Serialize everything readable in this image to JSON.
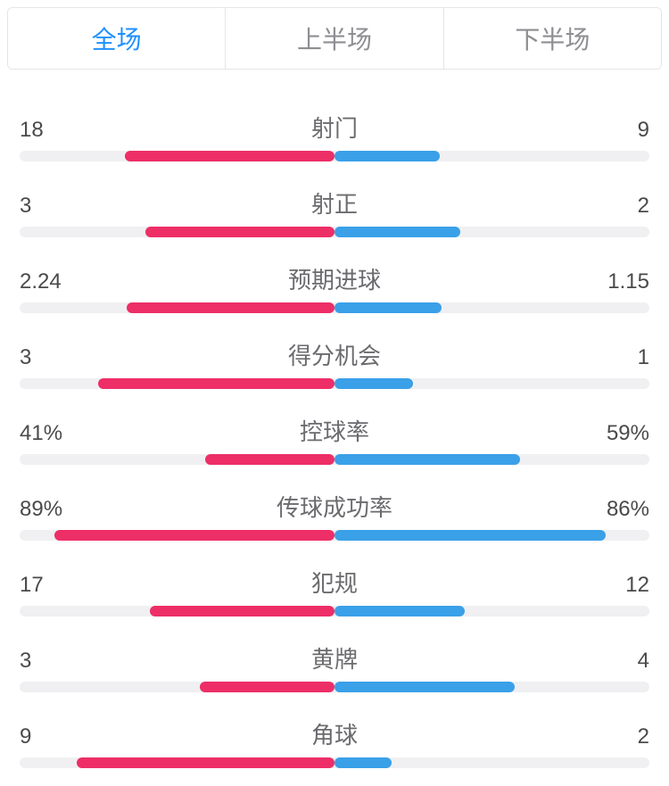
{
  "colors": {
    "left": "#ed2e67",
    "right": "#3aa0e8",
    "track": "#f0f0f2",
    "label": "#6b6b6f",
    "value": "#4a4a4a",
    "tab_active": "#1e90ff",
    "tab_inactive": "#8e8e93",
    "border": "#e5e5e7"
  },
  "tabs": {
    "items": [
      {
        "label": "全场",
        "active": true
      },
      {
        "label": "上半场",
        "active": false
      },
      {
        "label": "下半场",
        "active": false
      }
    ]
  },
  "stats": [
    {
      "label": "射门",
      "left_text": "18",
      "right_text": "9",
      "left_pct": 66.7,
      "right_pct": 33.3
    },
    {
      "label": "射正",
      "left_text": "3",
      "right_text": "2",
      "left_pct": 60.0,
      "right_pct": 40.0
    },
    {
      "label": "预期进球",
      "left_text": "2.24",
      "right_text": "1.15",
      "left_pct": 66.1,
      "right_pct": 33.9
    },
    {
      "label": "得分机会",
      "left_text": "3",
      "right_text": "1",
      "left_pct": 75.0,
      "right_pct": 25.0
    },
    {
      "label": "控球率",
      "left_text": "41%",
      "right_text": "59%",
      "left_pct": 41.0,
      "right_pct": 59.0
    },
    {
      "label": "传球成功率",
      "left_text": "89%",
      "right_text": "86%",
      "left_pct": 89.0,
      "right_pct": 86.0
    },
    {
      "label": "犯规",
      "left_text": "17",
      "right_text": "12",
      "left_pct": 58.6,
      "right_pct": 41.4
    },
    {
      "label": "黄牌",
      "left_text": "3",
      "right_text": "4",
      "left_pct": 42.9,
      "right_pct": 57.1
    },
    {
      "label": "角球",
      "left_text": "9",
      "right_text": "2",
      "left_pct": 81.8,
      "right_pct": 18.2
    }
  ]
}
